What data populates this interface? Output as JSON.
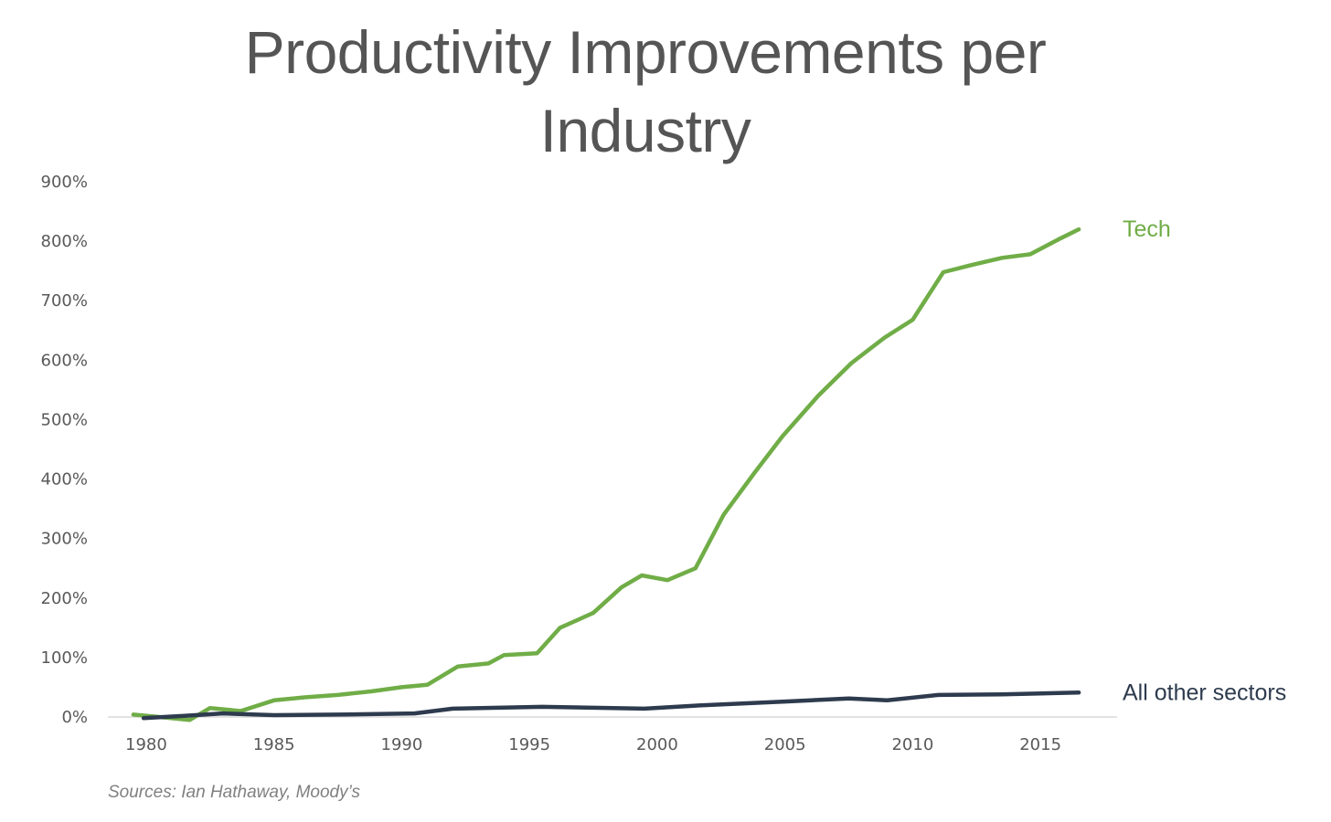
{
  "chart_data": {
    "type": "line",
    "title": "Productivity Improvements per Industry",
    "title_lines": [
      "Productivity Improvements per",
      "Industry"
    ],
    "xlabel": "",
    "ylabel": "",
    "xlim": [
      1978.5,
      2018
    ],
    "ylim": [
      0,
      900
    ],
    "x_ticks": [
      1980,
      1985,
      1990,
      1995,
      2000,
      2005,
      2010,
      2015
    ],
    "y_ticks": [
      {
        "value": 0,
        "label": "0%"
      },
      {
        "value": 100,
        "label": "100%"
      },
      {
        "value": 200,
        "label": "200%"
      },
      {
        "value": 300,
        "label": "300%"
      },
      {
        "value": 400,
        "label": "400%"
      },
      {
        "value": 500,
        "label": "500%"
      },
      {
        "value": 600,
        "label": "600%"
      },
      {
        "value": 700,
        "label": "700%"
      },
      {
        "value": 800,
        "label": "800%"
      },
      {
        "value": 900,
        "label": "900%"
      }
    ],
    "grid": false,
    "legend": "inline-right",
    "series": [
      {
        "name": "Tech",
        "color": "#70AD47",
        "x": [
          1979.5,
          1980.5,
          1981.7,
          1982.5,
          1983.7,
          1985.0,
          1986.2,
          1987.5,
          1988.8,
          1990.0,
          1991.0,
          1992.2,
          1993.4,
          1994.0,
          1995.3,
          1996.2,
          1997.5,
          1998.6,
          1999.4,
          2000.4,
          2001.5,
          2002.6,
          2003.8,
          2004.9,
          2006.3,
          2007.6,
          2008.9,
          2010.0,
          2011.2,
          2012.3,
          2013.5,
          2014.6,
          2015.7,
          2016.5
        ],
        "values": [
          4,
          0,
          -5,
          15,
          10,
          28,
          33,
          37,
          43,
          50,
          54,
          85,
          90,
          104,
          107,
          150,
          175,
          218,
          238,
          230,
          250,
          340,
          410,
          472,
          540,
          595,
          638,
          668,
          748,
          760,
          772,
          778,
          803,
          820
        ]
      },
      {
        "name": "All other sectors",
        "color": "#2E3B4E",
        "x": [
          1979.9,
          1981.5,
          1983.0,
          1985.0,
          1987.5,
          1990.5,
          1992.0,
          1995.5,
          1999.5,
          2001.5,
          2005.0,
          2007.5,
          2009.0,
          2011.0,
          2013.5,
          2016.5
        ],
        "values": [
          -2,
          2,
          6,
          3,
          4,
          6,
          14,
          17,
          14,
          19,
          26,
          31,
          28,
          37,
          38,
          41
        ]
      }
    ],
    "source": "Sources: Ian Hathaway, Moody’s"
  }
}
